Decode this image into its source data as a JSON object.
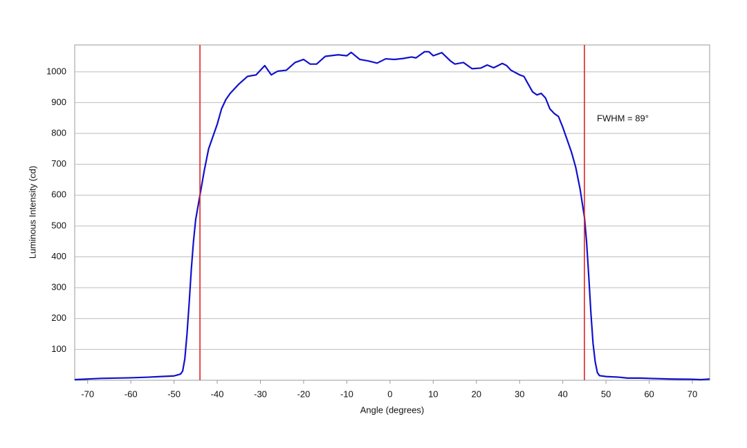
{
  "chart_data": {
    "type": "line",
    "xlabel": "Angle (degrees)",
    "ylabel": "Luminous Intensity (cd)",
    "annotation": "FWHM = 89°",
    "x": [
      -73,
      -70,
      -67,
      -60,
      -56,
      -53,
      -50,
      -48.5,
      -48,
      -47.5,
      -47,
      -46.5,
      -46,
      -45.5,
      -45,
      -44,
      -43,
      -42,
      -41,
      -40,
      -39,
      -38,
      -37,
      -35,
      -33,
      -31,
      -29,
      -27.5,
      -26,
      -24,
      -22,
      -20,
      -18.5,
      -17,
      -15,
      -12,
      -10,
      -9,
      -7,
      -5,
      -3,
      -1,
      1,
      3,
      5,
      6,
      8,
      9,
      10,
      12,
      14,
      15,
      17,
      19,
      21,
      22.5,
      24,
      26,
      27,
      28,
      30,
      31,
      32,
      33,
      34,
      35,
      36,
      37,
      38,
      39,
      40,
      41,
      42,
      43,
      44,
      45,
      45.5,
      46,
      46.5,
      47,
      47.5,
      48,
      48.5,
      50,
      53,
      55,
      58,
      60,
      65,
      70,
      72,
      74
    ],
    "series": [
      {
        "name": "Luminous Intensity",
        "color": "#1010cc",
        "values": [
          2,
          4,
          6,
          8,
          10,
          12,
          14,
          20,
          30,
          70,
          150,
          250,
          360,
          450,
          520,
          600,
          680,
          750,
          790,
          830,
          880,
          910,
          930,
          960,
          985,
          990,
          1020,
          990,
          1002,
          1005,
          1030,
          1040,
          1025,
          1025,
          1050,
          1055,
          1052,
          1063,
          1040,
          1035,
          1028,
          1042,
          1040,
          1043,
          1048,
          1045,
          1065,
          1065,
          1052,
          1062,
          1035,
          1025,
          1030,
          1010,
          1012,
          1022,
          1013,
          1027,
          1020,
          1005,
          990,
          985,
          960,
          935,
          925,
          930,
          915,
          880,
          865,
          855,
          820,
          780,
          740,
          690,
          620,
          530,
          450,
          340,
          220,
          120,
          60,
          25,
          15,
          12,
          10,
          7,
          7,
          6,
          4,
          3,
          2,
          4
        ]
      }
    ],
    "vlines": [
      -44,
      45
    ],
    "vline_color": "#dd2222",
    "xlim": [
      -73,
      74
    ],
    "ylim": [
      0,
      1087
    ],
    "xticks": [
      -70,
      -60,
      -50,
      -40,
      -30,
      -20,
      -10,
      0,
      10,
      20,
      30,
      40,
      50,
      60,
      70
    ],
    "yticks": [
      100,
      200,
      300,
      400,
      500,
      600,
      700,
      800,
      900,
      1000
    ],
    "grid": true
  }
}
